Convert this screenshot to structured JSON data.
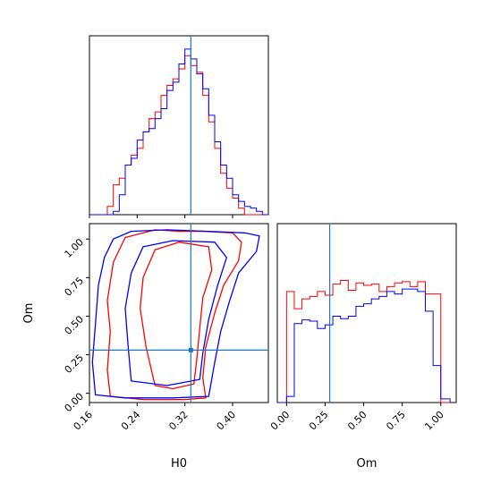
{
  "chart_data": {
    "type": "corner",
    "parameters": [
      "H0",
      "Om"
    ],
    "truth": {
      "H0": 0.33,
      "Om": 0.28
    },
    "series": [
      {
        "color": "#ff0000"
      },
      {
        "color": "#0000ff"
      }
    ],
    "colors": {
      "truth": "#1f77b4",
      "axes": "#000000"
    },
    "panels": {
      "h0_hist": {
        "type": "histogram",
        "xlim": [
          0.16,
          0.46
        ],
        "bin_edges": [
          0.16,
          0.17,
          0.18,
          0.19,
          0.2,
          0.21,
          0.22,
          0.23,
          0.24,
          0.25,
          0.26,
          0.27,
          0.28,
          0.29,
          0.3,
          0.31,
          0.32,
          0.33,
          0.34,
          0.35,
          0.36,
          0.37,
          0.38,
          0.39,
          0.4,
          0.41,
          0.42,
          0.43,
          0.44,
          0.45,
          0.46
        ],
        "red": [
          0,
          0,
          0,
          0.05,
          0.18,
          0.22,
          0.3,
          0.36,
          0.4,
          0.5,
          0.58,
          0.62,
          0.72,
          0.78,
          0.82,
          0.88,
          0.96,
          0.9,
          0.86,
          0.72,
          0.56,
          0.4,
          0.25,
          0.16,
          0.1,
          0.04,
          0,
          0,
          0,
          0
        ],
        "blue": [
          0,
          0,
          0,
          0,
          0.02,
          0.12,
          0.3,
          0.34,
          0.45,
          0.5,
          0.52,
          0.58,
          0.64,
          0.75,
          0.8,
          0.91,
          1.0,
          0.94,
          0.85,
          0.76,
          0.6,
          0.44,
          0.3,
          0.22,
          0.12,
          0.08,
          0.05,
          0.04,
          0.02,
          0
        ],
        "ylim": [
          0,
          1.08
        ]
      },
      "om_hist": {
        "type": "histogram",
        "xlim": [
          -0.06,
          1.1
        ],
        "bin_edges": [
          -0.06,
          0.0,
          0.05,
          0.1,
          0.15,
          0.2,
          0.25,
          0.3,
          0.35,
          0.4,
          0.45,
          0.5,
          0.55,
          0.6,
          0.65,
          0.7,
          0.75,
          0.8,
          0.85,
          0.9,
          0.95,
          1.0,
          1.06
        ],
        "red": [
          0,
          0.9,
          0.76,
          0.84,
          0.86,
          0.9,
          0.87,
          0.96,
          0.99,
          0.91,
          0.97,
          0.95,
          0.96,
          0.9,
          0.94,
          0.97,
          0.98,
          0.94,
          0.98,
          0.88,
          0.88,
          0
        ],
        "blue": [
          0,
          0.05,
          0.64,
          0.67,
          0.66,
          0.6,
          0.63,
          0.7,
          0.68,
          0.7,
          0.78,
          0.8,
          0.84,
          0.86,
          0.9,
          0.88,
          0.92,
          0.92,
          0.9,
          0.74,
          0.3,
          0.03
        ],
        "ylim": [
          0,
          1.45
        ]
      },
      "joint": {
        "type": "contour",
        "xlim": [
          0.16,
          0.46
        ],
        "ylim": [
          -0.06,
          1.1
        ]
      }
    },
    "xticks_h0": [
      "0.16",
      "0.24",
      "0.32",
      "0.40"
    ],
    "xticks_om": [
      "0.00",
      "0.25",
      "0.50",
      "0.75",
      "1.00"
    ],
    "yticks_om": [
      "0.00",
      "0.25",
      "0.50",
      "0.75",
      "1.00"
    ]
  }
}
